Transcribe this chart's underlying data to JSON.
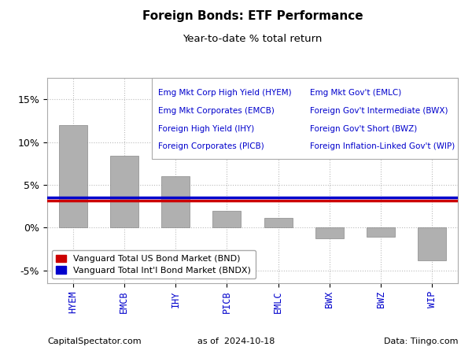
{
  "title": "Foreign Bonds: ETF Performance",
  "subtitle": "Year-to-date % total return",
  "categories": [
    "HYEM",
    "EMCB",
    "IHY",
    "PICB",
    "EMLC",
    "BWX",
    "BWZ",
    "WIP"
  ],
  "values": [
    12.0,
    8.4,
    6.0,
    2.0,
    1.1,
    -1.3,
    -1.1,
    -3.8
  ],
  "bar_color": "#b0b0b0",
  "bar_edge_color": "#888888",
  "bnd_value": 3.2,
  "bndx_value": 3.5,
  "bnd_color": "#cc0000",
  "bndx_color": "#0000cc",
  "bnd_label": "Vanguard Total US Bond Market (BND)",
  "bndx_label": "Vanguard Total Int'l Bond Market (BNDX)",
  "ylim": [
    -6.5,
    17.5
  ],
  "yticks": [
    -5,
    0,
    5,
    10,
    15
  ],
  "ytick_labels": [
    "-5%",
    "0%",
    "5%",
    "10%",
    "15%"
  ],
  "legend_lines_col1": [
    "Emg Mkt Corp High Yield (HYEM)",
    "Emg Mkt Corporates (EMCB)",
    "Foreign High Yield (IHY)",
    "Foreign Corporates (PICB)"
  ],
  "legend_lines_col2": [
    "Emg Mkt Gov't (EMLC)",
    "Foreign Gov't Intermediate (BWX)",
    "Foreign Gov't Short (BWZ)",
    "Foreign Inflation-Linked Gov't (WIP)"
  ],
  "footer_left": "CapitalSpectator.com",
  "footer_center": "as of  2024-10-18",
  "footer_right": "Data: Tiingo.com",
  "legend_text_color": "#0000cc",
  "xtick_color": "#0000cc",
  "background_color": "#ffffff",
  "grid_color": "#bbbbbb",
  "grid_style": ":",
  "spine_color": "#aaaaaa"
}
